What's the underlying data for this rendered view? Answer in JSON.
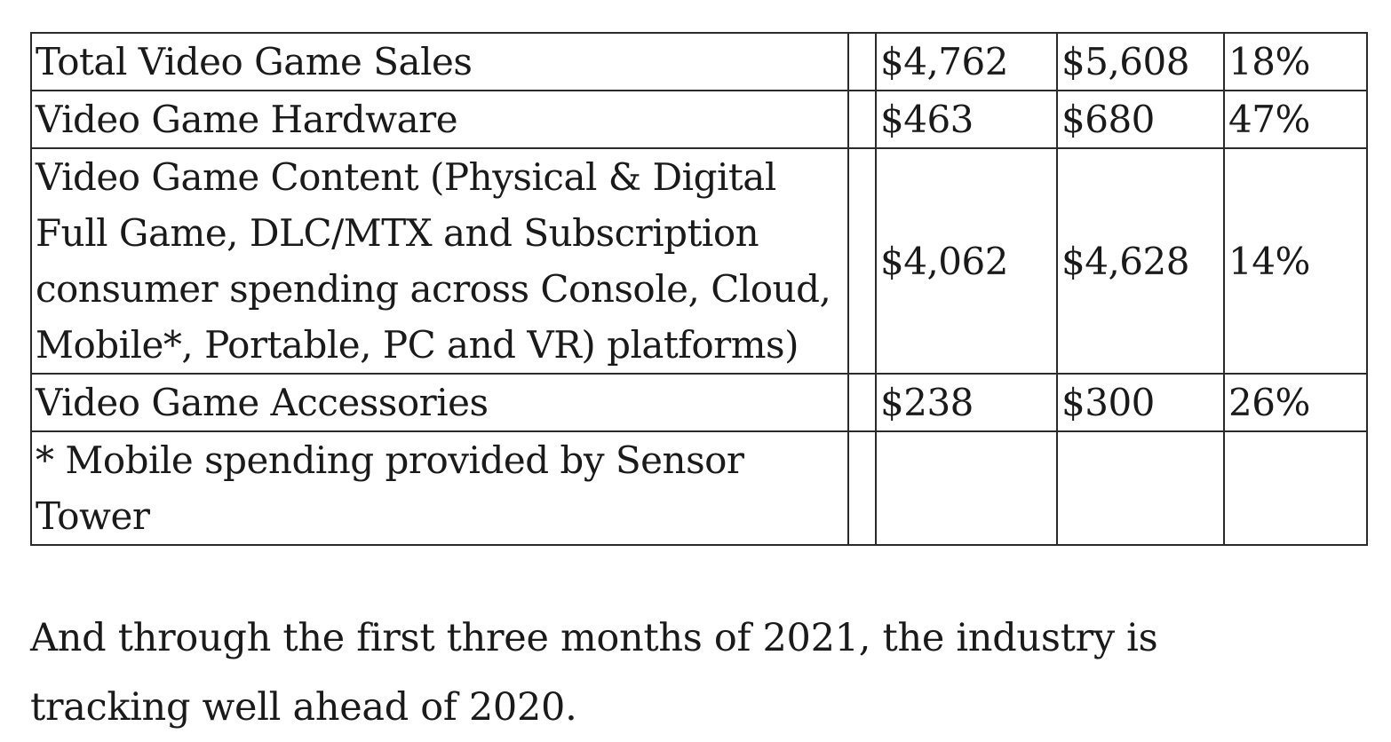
{
  "table": {
    "rows": [
      {
        "label": "Total Video Game Sales",
        "value_2020": "$4,762",
        "value_2021": "$5,608",
        "change": "18%"
      },
      {
        "label": "Video Game Hardware",
        "value_2020": "$463",
        "value_2021": "$680",
        "change": "47%"
      },
      {
        "label": "Video Game Content (Physical & Digital Full Game, DLC/MTX and Subscription consumer spending across Console, Cloud, Mobile*, Portable, PC and VR) platforms)",
        "value_2020": "$4,062",
        "value_2021": "$4,628",
        "change": "14%"
      },
      {
        "label": "Video Game Accessories",
        "value_2020": "$238",
        "value_2021": "$300",
        "change": "26%"
      },
      {
        "label": "* Mobile spending provided by Sensor Tower",
        "value_2020": "",
        "value_2021": "",
        "change": ""
      }
    ]
  },
  "paragraph": {
    "text": "And through the first three months of 2021, the industry is tracking well ahead of 2020."
  }
}
